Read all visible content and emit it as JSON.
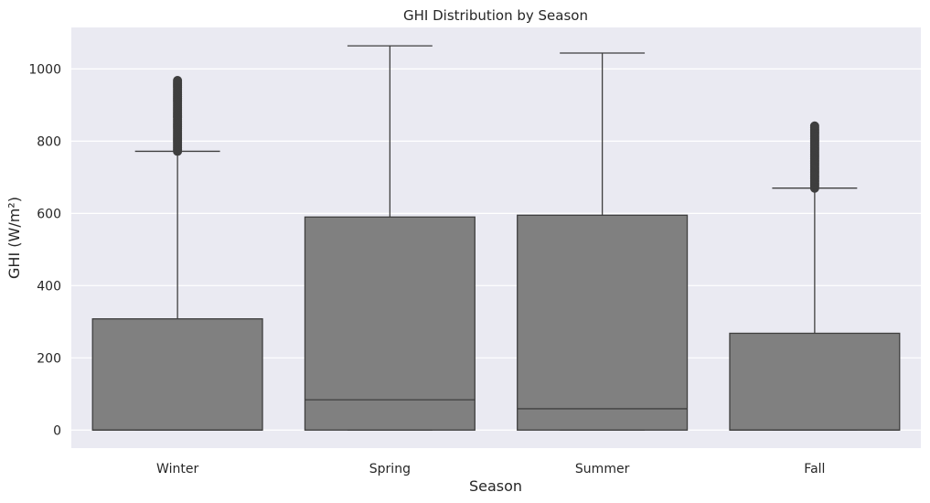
{
  "chart_data": {
    "type": "box",
    "title": "GHI Distribution by Season",
    "xlabel": "Season",
    "ylabel": "GHI (W/m²)",
    "ylim": [
      -50,
      1115
    ],
    "yticks": [
      0,
      200,
      400,
      600,
      800,
      1000
    ],
    "grid": true,
    "colors": {
      "background": "#eaeaf2",
      "box": "#808080",
      "line": "#3f3f3f",
      "grid": "#ffffff"
    },
    "categories": [
      "Winter",
      "Spring",
      "Summer",
      "Fall"
    ],
    "boxes": [
      {
        "category": "Winter",
        "whisker_low": 0,
        "q1": 0,
        "median": 0,
        "q3": 308,
        "whisker_high": 772,
        "outliers_range": [
          772,
          968
        ]
      },
      {
        "category": "Spring",
        "whisker_low": 0,
        "q1": 0,
        "median": 84,
        "q3": 590,
        "whisker_high": 1064,
        "outliers_range": null
      },
      {
        "category": "Summer",
        "whisker_low": 0,
        "q1": 0,
        "median": 59,
        "q3": 595,
        "whisker_high": 1044,
        "outliers_range": null
      },
      {
        "category": "Fall",
        "whisker_low": 0,
        "q1": 0,
        "median": 0,
        "q3": 268,
        "whisker_high": 670,
        "outliers_range": [
          670,
          842
        ]
      }
    ]
  }
}
